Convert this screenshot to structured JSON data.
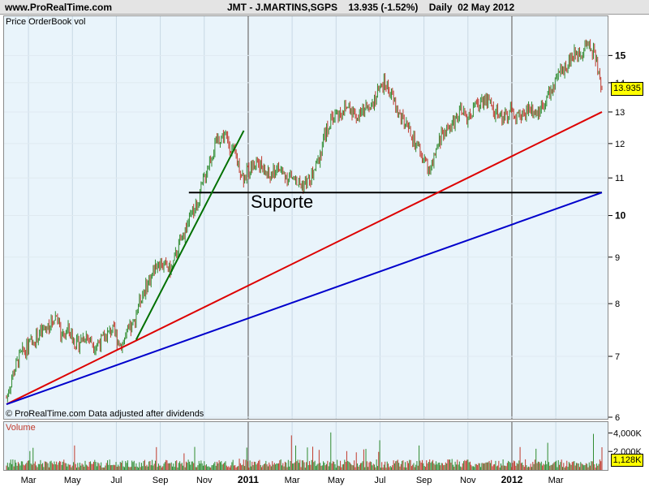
{
  "header": {
    "site": "www.ProRealTime.com",
    "title": "JMT - J.MARTINS,SGPS    13.935 (-1.52%)    Daily  02 May 2012"
  },
  "price_panel": {
    "label": "Price OrderBook vol",
    "note": "© ProRealTime.com  Data adjusted after dividends",
    "last_price_tag": "13.935",
    "annotation": "Suporte"
  },
  "volume_panel": {
    "label": "Volume",
    "last_volume_tag": "1,128K"
  },
  "colors": {
    "up": "#2e8b2e",
    "down": "#c0392b",
    "support_line": "#000000",
    "red_trend": "#dd0000",
    "blue_trend": "#0000cc",
    "green_trend": "#007000",
    "panel_bg": "#e9f4fb",
    "tag_bg": "#ffff00"
  },
  "chart_data": {
    "type": "line",
    "title": "JMT - J.MARTINS,SGPS",
    "log_scale": true,
    "price_ylim": [
      6,
      16.5
    ],
    "price_ticks": [
      "6",
      "7",
      "8",
      "9",
      "10",
      "11",
      "12",
      "13",
      "14",
      "15"
    ],
    "bold_price_ticks": [
      "10",
      "15"
    ],
    "volume_ticks": [
      "4,000K",
      "2,000K"
    ],
    "volume_ylim": [
      0,
      5000
    ],
    "x_ticks": [
      "Mar",
      "May",
      "Jul",
      "Sep",
      "Nov",
      "2011",
      "Mar",
      "May",
      "Jul",
      "Sep",
      "Nov",
      "2012",
      "Mar"
    ],
    "bold_x_ticks": [
      "2011",
      "2012"
    ],
    "x_tick_months": [
      2.0,
      4.0,
      6.0,
      8.0,
      10.0,
      12.0,
      14.0,
      16.0,
      18.0,
      20.0,
      22.0,
      24.0,
      26.0
    ],
    "x_range_months": [
      1.0,
      28.1
    ],
    "price_path": [
      [
        1.0,
        6.3
      ],
      [
        1.3,
        6.7
      ],
      [
        1.6,
        7.0
      ],
      [
        2.0,
        7.2
      ],
      [
        2.5,
        7.4
      ],
      [
        3.0,
        7.6
      ],
      [
        3.3,
        7.8
      ],
      [
        3.5,
        7.3
      ],
      [
        3.8,
        7.5
      ],
      [
        4.2,
        7.2
      ],
      [
        4.6,
        7.4
      ],
      [
        5.0,
        7.2
      ],
      [
        5.4,
        7.3
      ],
      [
        5.8,
        7.5
      ],
      [
        6.2,
        7.2
      ],
      [
        6.5,
        7.4
      ],
      [
        6.8,
        7.6
      ],
      [
        7.0,
        8.0
      ],
      [
        7.3,
        8.3
      ],
      [
        7.6,
        8.6
      ],
      [
        7.9,
        8.9
      ],
      [
        8.2,
        8.8
      ],
      [
        8.5,
        8.7
      ],
      [
        8.8,
        9.2
      ],
      [
        9.1,
        9.6
      ],
      [
        9.4,
        10.0
      ],
      [
        9.7,
        10.3
      ],
      [
        10.0,
        11.0
      ],
      [
        10.3,
        11.6
      ],
      [
        10.6,
        12.1
      ],
      [
        10.9,
        12.3
      ],
      [
        11.2,
        11.9
      ],
      [
        11.5,
        11.5
      ],
      [
        11.8,
        11.0
      ],
      [
        12.1,
        11.3
      ],
      [
        12.4,
        11.5
      ],
      [
        12.7,
        11.2
      ],
      [
        13.0,
        11.0
      ],
      [
        13.3,
        11.3
      ],
      [
        13.6,
        11.1
      ],
      [
        14.0,
        11.0
      ],
      [
        14.4,
        10.8
      ],
      [
        14.8,
        10.9
      ],
      [
        15.2,
        11.5
      ],
      [
        15.5,
        12.3
      ],
      [
        15.8,
        12.8
      ],
      [
        16.2,
        13.0
      ],
      [
        16.6,
        13.2
      ],
      [
        17.0,
        12.8
      ],
      [
        17.4,
        13.2
      ],
      [
        17.8,
        13.5
      ],
      [
        18.2,
        14.0
      ],
      [
        18.5,
        13.6
      ],
      [
        18.8,
        13.0
      ],
      [
        19.2,
        12.5
      ],
      [
        19.6,
        12.0
      ],
      [
        20.0,
        11.5
      ],
      [
        20.3,
        11.2
      ],
      [
        20.5,
        11.6
      ],
      [
        20.8,
        12.3
      ],
      [
        21.2,
        12.5
      ],
      [
        21.6,
        13.0
      ],
      [
        22.0,
        12.8
      ],
      [
        22.4,
        13.2
      ],
      [
        22.8,
        13.5
      ],
      [
        23.2,
        13.0
      ],
      [
        23.6,
        12.8
      ],
      [
        24.0,
        13.1
      ],
      [
        24.4,
        12.8
      ],
      [
        24.8,
        13.2
      ],
      [
        25.2,
        13.0
      ],
      [
        25.6,
        13.5
      ],
      [
        26.0,
        14.0
      ],
      [
        26.4,
        14.6
      ],
      [
        26.8,
        15.0
      ],
      [
        27.2,
        15.2
      ],
      [
        27.5,
        15.5
      ],
      [
        27.8,
        15.0
      ],
      [
        28.0,
        14.0
      ],
      [
        28.1,
        13.935
      ]
    ],
    "trendlines": [
      {
        "name": "Suporte",
        "points": [
          [
            9.3,
            10.6
          ],
          [
            28.1,
            10.6
          ]
        ]
      },
      {
        "name": "red-trend",
        "points": [
          [
            1.0,
            6.2
          ],
          [
            28.1,
            13.0
          ]
        ]
      },
      {
        "name": "blue-trend",
        "points": [
          [
            1.0,
            6.2
          ],
          [
            28.1,
            10.6
          ]
        ]
      },
      {
        "name": "green-trend",
        "points": [
          [
            6.9,
            7.3
          ],
          [
            11.8,
            12.4
          ]
        ]
      }
    ]
  }
}
